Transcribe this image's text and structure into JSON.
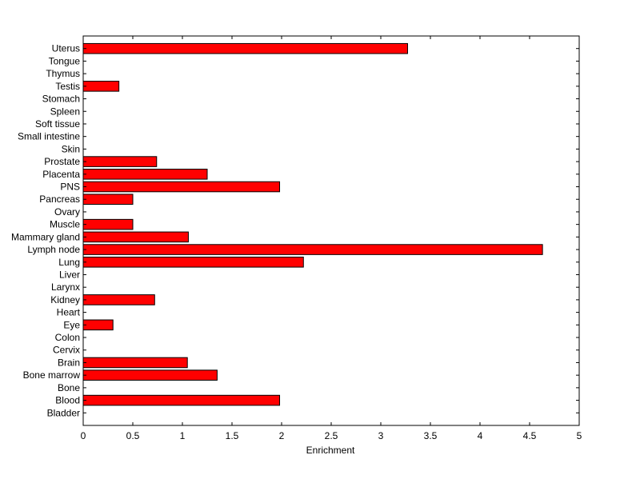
{
  "chart_data": {
    "type": "bar",
    "orientation": "horizontal",
    "xlabel": "Enrichment",
    "ylabel": "",
    "xlim": [
      0,
      5
    ],
    "xticks": [
      "0",
      "0.5",
      "1",
      "1.5",
      "2",
      "2.5",
      "3",
      "3.5",
      "4",
      "4.5",
      "5"
    ],
    "categories": [
      "Uterus",
      "Tongue",
      "Thymus",
      "Testis",
      "Stomach",
      "Spleen",
      "Soft tissue",
      "Small intestine",
      "Skin",
      "Prostate",
      "Placenta",
      "PNS",
      "Pancreas",
      "Ovary",
      "Muscle",
      "Mammary gland",
      "Lymph node",
      "Lung",
      "Liver",
      "Larynx",
      "Kidney",
      "Heart",
      "Eye",
      "Colon",
      "Cervix",
      "Brain",
      "Bone marrow",
      "Bone",
      "Blood",
      "Bladder"
    ],
    "values": [
      3.27,
      0,
      0,
      0.36,
      0,
      0,
      0,
      0,
      0,
      0.74,
      1.25,
      1.98,
      0.5,
      0,
      0.5,
      1.06,
      4.63,
      2.22,
      0,
      0,
      0.72,
      0,
      0.3,
      0,
      0,
      1.05,
      1.35,
      0,
      1.98,
      0
    ],
    "bar_color": "#ff0000",
    "bar_edge_color": "#000000",
    "grid": false,
    "legend": "none"
  }
}
